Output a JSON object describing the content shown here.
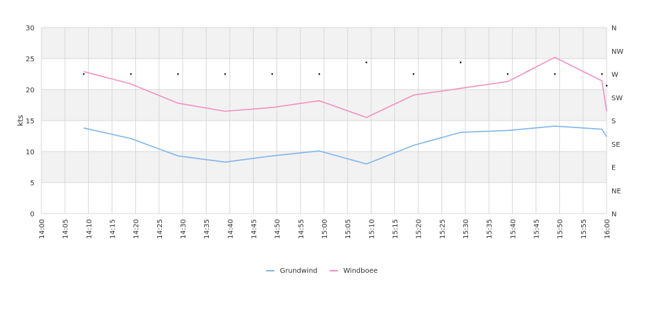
{
  "chart_data": {
    "type": "line",
    "x_ticks": [
      "14:00",
      "14:05",
      "14:10",
      "14:15",
      "14:20",
      "14:25",
      "14:30",
      "14:35",
      "14:40",
      "14:45",
      "14:50",
      "14:55",
      "15:00",
      "15:05",
      "15:10",
      "15:15",
      "15:20",
      "15:25",
      "15:30",
      "15:35",
      "15:40",
      "15:45",
      "15:50",
      "15:55",
      "16:00"
    ],
    "y_ticks": [
      "0",
      "5",
      "10",
      "15",
      "20",
      "25",
      "30"
    ],
    "ylim": [
      0,
      30
    ],
    "ylabel": "kts",
    "y2_ticks": [
      "N",
      "NE",
      "E",
      "SE",
      "S",
      "SW",
      "W",
      "NW",
      "N"
    ],
    "y2lim": [
      0,
      360
    ],
    "grid": true,
    "legend_position": "bottom",
    "colors": {
      "grundwind": "#7cb5ec",
      "windboee": "#f28fc0",
      "direction_marker": "#000000",
      "band": "#f2f2f2",
      "gridline": "#d8d8d8"
    },
    "series": [
      {
        "name": "Grundwind",
        "x": [
          "14:09",
          "14:19",
          "14:29",
          "14:39",
          "14:49",
          "14:59",
          "15:09",
          "15:19",
          "15:29",
          "15:39",
          "15:49",
          "15:59",
          "16:00"
        ],
        "values": [
          13.8,
          12.1,
          9.3,
          8.3,
          9.3,
          10.1,
          8.0,
          11.0,
          13.1,
          13.4,
          14.1,
          13.6,
          12.4
        ]
      },
      {
        "name": "Windboee",
        "x": [
          "14:09",
          "14:19",
          "14:29",
          "14:39",
          "14:49",
          "14:59",
          "15:09",
          "15:19",
          "15:29",
          "15:39",
          "15:49",
          "15:59",
          "16:00"
        ],
        "values": [
          22.9,
          20.9,
          17.8,
          16.5,
          17.1,
          18.2,
          15.5,
          19.1,
          20.2,
          21.3,
          25.2,
          21.4,
          16.5
        ]
      }
    ],
    "direction": {
      "x": [
        "14:09",
        "14:19",
        "14:29",
        "14:39",
        "14:49",
        "14:59",
        "15:09",
        "15:19",
        "15:29",
        "15:39",
        "15:49",
        "15:59",
        "16:00"
      ],
      "values": [
        270,
        270,
        270,
        270,
        270,
        270,
        292.5,
        270,
        292.5,
        270,
        270,
        270,
        247.5
      ]
    }
  }
}
